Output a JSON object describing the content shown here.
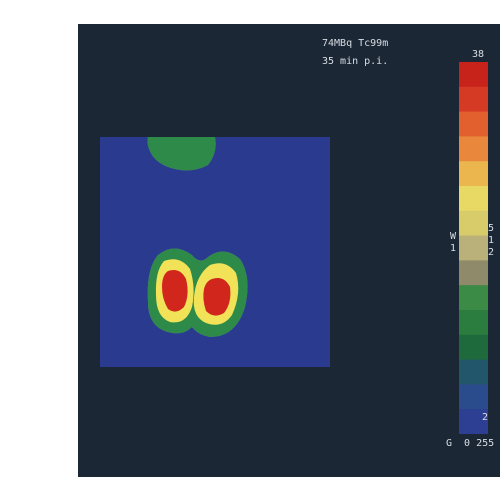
{
  "acquisition": {
    "activity_label": "74MBq Tc99m",
    "time_label": "35 min p.i."
  },
  "colorbar": {
    "max_value": "38",
    "min_value": "2",
    "window_label": "W\n1",
    "zoom_label": "5\n1\n2",
    "gray_label": "G  0 255",
    "colors": [
      "#c8231a",
      "#d53a24",
      "#e2602e",
      "#e9873c",
      "#eab64d",
      "#e8d965",
      "#d8cc6a",
      "#b9b07a",
      "#8f8a6a",
      "#3b8a45",
      "#2a7c3f",
      "#1f6a3c",
      "#22566a",
      "#2a4b8c",
      "#2c3f92"
    ]
  },
  "scan": {
    "background_color": "#2a3a8e",
    "hot_color": "#d0261e",
    "warm_color": "#f1e259",
    "mid_color": "#2f8a4a"
  }
}
